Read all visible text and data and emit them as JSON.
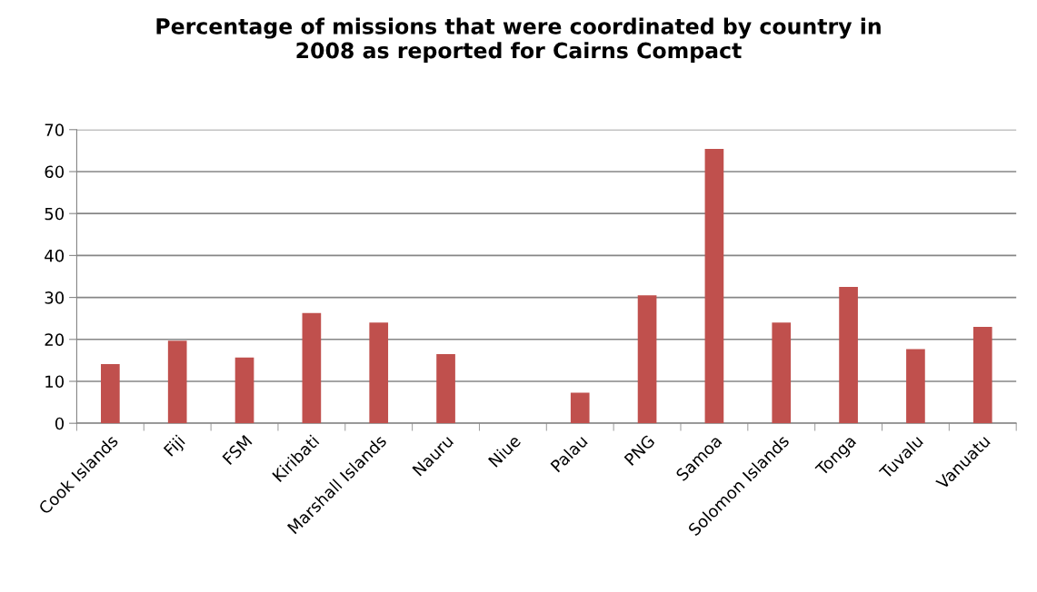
{
  "chart_data": {
    "type": "bar",
    "title": "Percentage of missions that were coordinated by country in\n2008 as reported for Cairns Compact",
    "categories": [
      "Cook Islands",
      "Fiji",
      "FSM",
      "Kiribati",
      "Marshall Islands",
      "Nauru",
      "Niue",
      "Palau",
      "PNG",
      "Samoa",
      "Solomon Islands",
      "Tonga",
      "Tuvalu",
      "Vanuatu"
    ],
    "values": [
      14.1,
      19.7,
      15.7,
      26.3,
      24.0,
      16.5,
      0,
      7.3,
      30.5,
      65.4,
      24.0,
      32.5,
      17.7,
      23.0
    ],
    "color": "#c0504d",
    "ylim": [
      0,
      70
    ],
    "yticks": [
      0,
      10,
      20,
      30,
      40,
      50,
      60,
      70
    ],
    "grid": "y",
    "legend": false
  }
}
